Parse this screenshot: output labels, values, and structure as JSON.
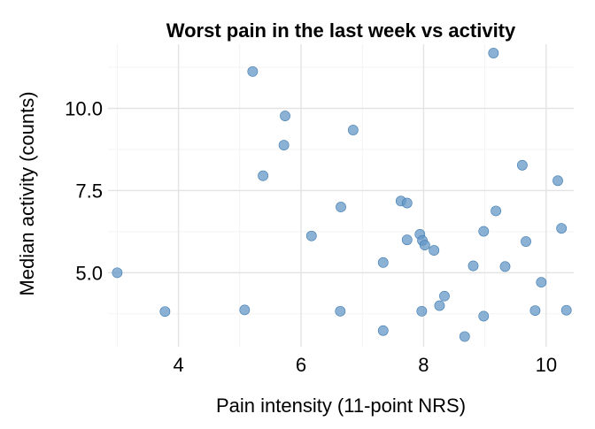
{
  "chart_data": {
    "type": "scatter",
    "title": "Worst pain in the last week vs activity",
    "xlabel": "Pain intensity (11-point NRS)",
    "ylabel": "Median activity (counts)",
    "xlim": [
      2.85,
      10.45
    ],
    "ylim": [
      2.75,
      11.95
    ],
    "x_ticks": [
      4,
      6,
      8,
      10
    ],
    "x_tick_labels": [
      "4",
      "6",
      "8",
      "10"
    ],
    "x_minor_ticks": [
      3,
      5,
      7,
      9
    ],
    "y_ticks": [
      5.0,
      7.5,
      10.0
    ],
    "y_tick_labels": [
      "5.0",
      "7.5",
      "10.0"
    ],
    "y_minor_ticks": [
      3.75,
      6.25,
      8.75,
      11.25
    ],
    "grid": true,
    "point_color": "#6497c7",
    "point_opacity": 0.75,
    "points": [
      {
        "x": 3.0,
        "y": 5.0
      },
      {
        "x": 3.78,
        "y": 3.82
      },
      {
        "x": 5.08,
        "y": 3.87
      },
      {
        "x": 5.21,
        "y": 11.12
      },
      {
        "x": 5.74,
        "y": 9.77
      },
      {
        "x": 5.72,
        "y": 8.88
      },
      {
        "x": 5.38,
        "y": 7.95
      },
      {
        "x": 6.17,
        "y": 6.12
      },
      {
        "x": 6.65,
        "y": 7.0
      },
      {
        "x": 6.64,
        "y": 3.83
      },
      {
        "x": 6.85,
        "y": 9.34
      },
      {
        "x": 7.34,
        "y": 5.31
      },
      {
        "x": 7.34,
        "y": 3.24
      },
      {
        "x": 7.63,
        "y": 7.18
      },
      {
        "x": 7.73,
        "y": 7.12
      },
      {
        "x": 7.73,
        "y": 6.0
      },
      {
        "x": 7.94,
        "y": 6.17
      },
      {
        "x": 7.98,
        "y": 5.98
      },
      {
        "x": 8.02,
        "y": 5.84
      },
      {
        "x": 8.17,
        "y": 5.68
      },
      {
        "x": 7.97,
        "y": 3.83
      },
      {
        "x": 8.26,
        "y": 4.0
      },
      {
        "x": 8.34,
        "y": 4.29
      },
      {
        "x": 8.67,
        "y": 3.06
      },
      {
        "x": 8.81,
        "y": 5.21
      },
      {
        "x": 8.98,
        "y": 6.26
      },
      {
        "x": 8.98,
        "y": 3.68
      },
      {
        "x": 9.14,
        "y": 11.68
      },
      {
        "x": 9.18,
        "y": 6.88
      },
      {
        "x": 9.33,
        "y": 5.19
      },
      {
        "x": 9.61,
        "y": 8.27
      },
      {
        "x": 9.67,
        "y": 5.95
      },
      {
        "x": 9.82,
        "y": 3.85
      },
      {
        "x": 9.92,
        "y": 4.71
      },
      {
        "x": 10.19,
        "y": 7.8
      },
      {
        "x": 10.25,
        "y": 6.35
      },
      {
        "x": 10.33,
        "y": 3.86
      }
    ]
  }
}
